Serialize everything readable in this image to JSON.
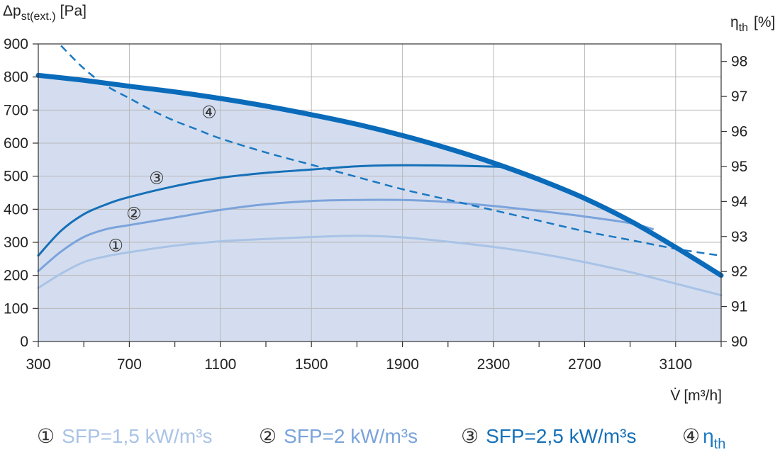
{
  "chart_data": {
    "type": "line",
    "x_label": "V̇",
    "x_unit": "[m³/h]",
    "y_left_label_main": "Δp",
    "y_left_label_sub": "st(ext.)",
    "y_left_unit": "[Pa]",
    "y_right_label_main": "η",
    "y_right_label_sub": "th",
    "y_right_unit": "[%]",
    "x_ticks": [
      300,
      700,
      1100,
      1500,
      1900,
      2300,
      2700,
      3100
    ],
    "y_left_ticks": [
      0,
      100,
      200,
      300,
      400,
      500,
      600,
      700,
      800,
      900
    ],
    "y_right_ticks": [
      90,
      91,
      92,
      93,
      94,
      95,
      96,
      97,
      98
    ],
    "xlim": [
      300,
      3300
    ],
    "ylim_left": [
      0,
      900
    ],
    "ylim_right": [
      90,
      98.5
    ],
    "grid": true,
    "colors": {
      "area_fill": "#d3ddef",
      "sfp15": "#a9c3e6",
      "sfp2": "#7ba3db",
      "sfp25": "#1570b8",
      "max": "#0a6bba",
      "eta": "#1b78c2"
    },
    "series": [
      {
        "key": "max",
        "axis": "left",
        "style": "thick",
        "x": [
          300,
          500,
          700,
          900,
          1100,
          1300,
          1500,
          1700,
          1900,
          2100,
          2300,
          2500,
          2700,
          2900,
          3100,
          3300
        ],
        "values": [
          805,
          790,
          772,
          755,
          735,
          712,
          686,
          657,
          623,
          584,
          540,
          490,
          433,
          365,
          285,
          200
        ]
      },
      {
        "key": "sfp25",
        "marker": "③",
        "axis": "left",
        "style": "solid",
        "x": [
          300,
          400,
          500,
          600,
          700,
          900,
          1100,
          1300,
          1500,
          1700,
          1900,
          2100,
          2300,
          2350
        ],
        "values": [
          260,
          335,
          385,
          415,
          437,
          470,
          495,
          510,
          520,
          530,
          533,
          532,
          529,
          527
        ]
      },
      {
        "key": "sfp2",
        "marker": "②",
        "axis": "left",
        "style": "solid",
        "x": [
          300,
          400,
          500,
          600,
          700,
          900,
          1100,
          1300,
          1500,
          1700,
          1900,
          2100,
          2300,
          2500,
          2700,
          2900,
          3000
        ],
        "values": [
          213,
          272,
          316,
          340,
          352,
          375,
          398,
          415,
          425,
          428,
          428,
          422,
          410,
          395,
          378,
          358,
          340
        ]
      },
      {
        "key": "sfp15",
        "marker": "①",
        "axis": "left",
        "style": "solid",
        "x": [
          300,
          400,
          500,
          600,
          700,
          900,
          1100,
          1300,
          1500,
          1700,
          1900,
          2100,
          2300,
          2500,
          2700,
          2900,
          3100,
          3300
        ],
        "values": [
          162,
          205,
          240,
          258,
          270,
          290,
          303,
          310,
          316,
          320,
          315,
          302,
          286,
          266,
          240,
          210,
          175,
          140
        ]
      },
      {
        "key": "eta",
        "marker": "④",
        "axis": "right",
        "style": "dashed",
        "x": [
          400,
          500,
          600,
          700,
          800,
          900,
          1000,
          1100,
          1300,
          1500,
          1700,
          1900,
          2100,
          2300,
          2500,
          2700,
          2900,
          3100,
          3300
        ],
        "values": [
          98.45,
          97.8,
          97.3,
          96.95,
          96.6,
          96.3,
          96.05,
          95.8,
          95.4,
          95.05,
          94.7,
          94.35,
          94.05,
          93.75,
          93.45,
          93.15,
          92.9,
          92.65,
          92.45
        ]
      }
    ],
    "annotations": [
      {
        "text": "④",
        "x": 1050,
        "y": 693
      },
      {
        "text": "③",
        "x": 820,
        "y": 494
      },
      {
        "text": "②",
        "x": 720,
        "y": 387
      },
      {
        "text": "①",
        "x": 640,
        "y": 290
      }
    ],
    "legend": [
      {
        "marker": "①",
        "label": "SFP=1,5 kW/m³s",
        "color_key": "sfp15"
      },
      {
        "marker": "②",
        "label": "SFP=2 kW/m³s",
        "color_key": "sfp2"
      },
      {
        "marker": "③",
        "label": "SFP=2,5 kW/m³s",
        "color_key": "sfp25"
      },
      {
        "marker": "④",
        "label_main": "η",
        "label_sub": "th",
        "color_key": "eta"
      }
    ]
  }
}
